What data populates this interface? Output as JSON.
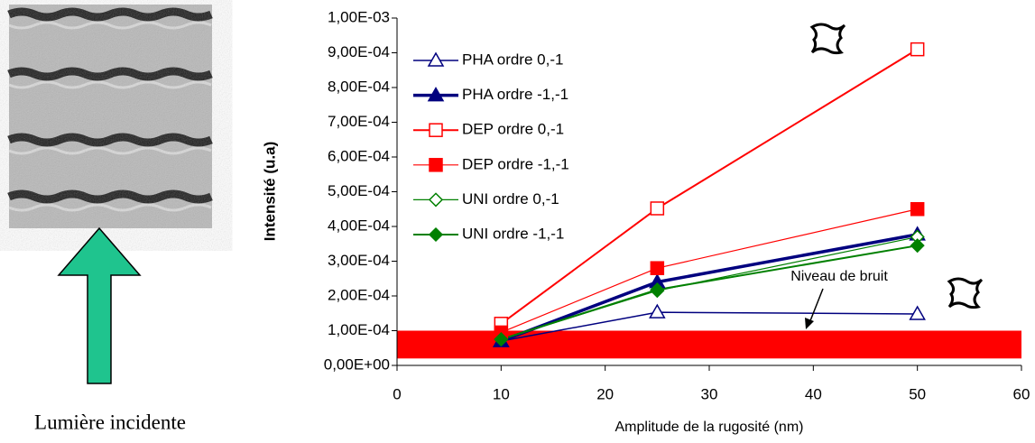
{
  "caption": "Lumière incidente",
  "chart_data": {
    "type": "line",
    "y_label": "Intensité (u.a)",
    "x_label": "Amplitude de la rugosité (nm)",
    "x": [
      10,
      25,
      50
    ],
    "series": [
      {
        "name": "PHA ordre 0,-1",
        "color": "#00007f",
        "marker": "triangle",
        "filled": false,
        "line_width": 1.5,
        "values": [
          7e-05,
          0.000153,
          0.000148
        ]
      },
      {
        "name": "PHA ordre -1,-1",
        "color": "#00007f",
        "marker": "triangle",
        "filled": true,
        "line_width": 3.5,
        "values": [
          7e-05,
          0.00024,
          0.000377
        ]
      },
      {
        "name": "DEP ordre 0,-1",
        "color": "#ff0000",
        "marker": "square",
        "filled": false,
        "line_width": 2,
        "values": [
          0.00012,
          0.000452,
          0.00091
        ]
      },
      {
        "name": "DEP ordre -1,-1",
        "color": "#ff0000",
        "marker": "square",
        "filled": true,
        "line_width": 1.2,
        "values": [
          9.5e-05,
          0.00028,
          0.00045
        ]
      },
      {
        "name": "UNI ordre 0,-1",
        "color": "#008000",
        "marker": "diamond",
        "filled": false,
        "line_width": 1.2,
        "values": [
          7.5e-05,
          0.000215,
          0.00037
        ]
      },
      {
        "name": "UNI ordre -1,-1",
        "color": "#008000",
        "marker": "diamond",
        "filled": true,
        "line_width": 2,
        "values": [
          7.5e-05,
          0.000218,
          0.000345
        ]
      }
    ],
    "noise_band": {
      "label": "Niveau de bruit",
      "color": "#ff0000",
      "range": [
        2e-05,
        0.0001
      ]
    },
    "xlim": [
      0,
      60
    ],
    "xticks": [
      0,
      10,
      20,
      30,
      40,
      50,
      60
    ],
    "ylim": [
      0,
      0.001
    ],
    "yticks": [
      {
        "value": 0,
        "label": "0,00E+00"
      },
      {
        "value": 0.0001,
        "label": "1,00E-04"
      },
      {
        "value": 0.0002,
        "label": "2,00E-04"
      },
      {
        "value": 0.0003,
        "label": "3,00E-04"
      },
      {
        "value": 0.0004,
        "label": "4,00E-04"
      },
      {
        "value": 0.0005,
        "label": "5,00E-04"
      },
      {
        "value": 0.0006,
        "label": "6,00E-04"
      },
      {
        "value": 0.0007,
        "label": "7,00E-04"
      },
      {
        "value": 0.0008,
        "label": "8,00E-04"
      },
      {
        "value": 0.0009,
        "label": "9,00E-04"
      },
      {
        "value": 0.001,
        "label": "1,00E-03"
      }
    ],
    "legend": "upper-left"
  }
}
